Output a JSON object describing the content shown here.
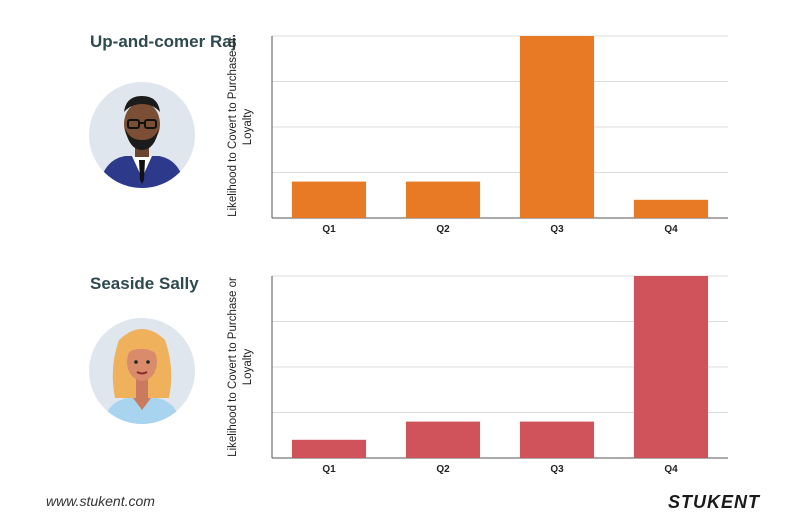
{
  "colors": {
    "raj_bar": "#e87a25",
    "sally_bar": "#d0525b",
    "grid": "#dcdcdc",
    "axis": "#555555"
  },
  "footer": {
    "url": "www.stukent.com",
    "logo": "STUKENT"
  },
  "chart_data": [
    {
      "type": "bar",
      "title": "Up-and-comer Raj",
      "ylabel": "Likelihood to Covert to Purchase or Loyalty",
      "categories": [
        "Q1",
        "Q2",
        "Q3",
        "Q4"
      ],
      "values": [
        20,
        20,
        100,
        10
      ],
      "ylim": [
        0,
        100
      ],
      "grid": true
    },
    {
      "type": "bar",
      "title": "Seaside Sally",
      "ylabel": "Likelihood to Covert to Purchase or Loyalty",
      "categories": [
        "Q1",
        "Q2",
        "Q3",
        "Q4"
      ],
      "values": [
        10,
        20,
        20,
        100
      ],
      "ylim": [
        0,
        100
      ],
      "grid": true
    }
  ]
}
